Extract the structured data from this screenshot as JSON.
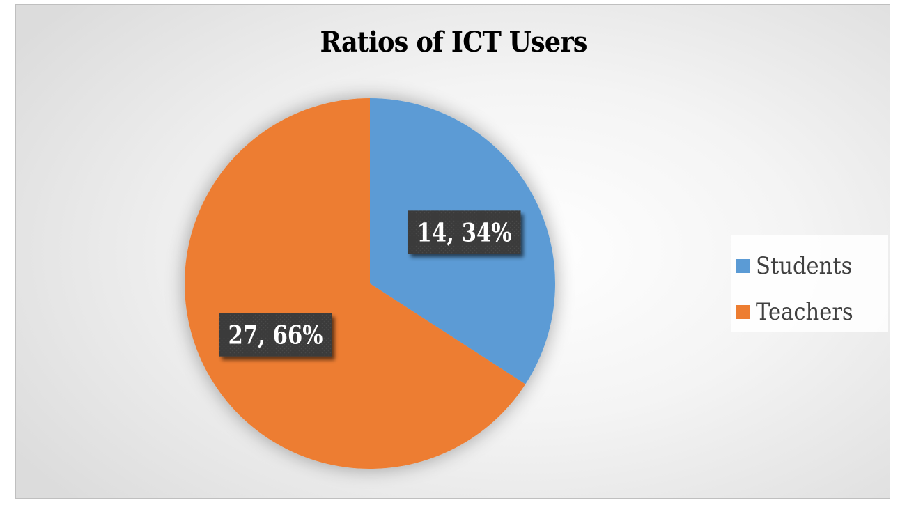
{
  "chart_data": {
    "type": "pie",
    "title": "Ratios of ICT Users",
    "categories": [
      "Students",
      "Teachers"
    ],
    "values": [
      14,
      27
    ],
    "percentages": [
      "34%",
      "66%"
    ],
    "data_labels": [
      "14, 34%",
      "27, 66%"
    ],
    "colors": [
      "#5b9bd5",
      "#ed7d31"
    ],
    "legend_placement": "right"
  }
}
